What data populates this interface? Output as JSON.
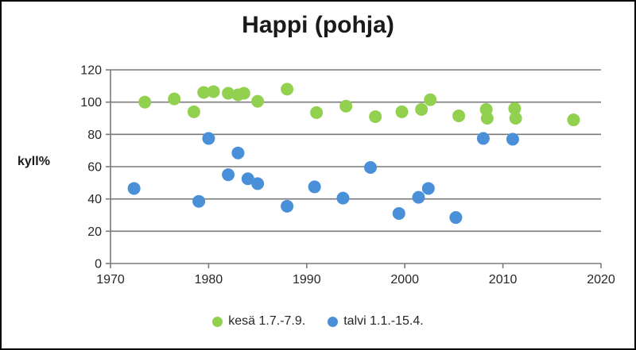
{
  "chart_data": {
    "type": "scatter",
    "title": "Happi (pohja)",
    "xlabel": "",
    "ylabel": "kyll%",
    "xlim": [
      1970,
      2020
    ],
    "ylim": [
      0,
      120
    ],
    "x_ticks": [
      1970,
      1980,
      1990,
      2000,
      2010,
      2020
    ],
    "y_ticks": [
      0,
      20,
      40,
      60,
      80,
      100,
      120
    ],
    "grid": "horizontal",
    "legend_position": "bottom",
    "axis_color": "#7a7a7a",
    "text_color": "#262626",
    "marker_radius": 8,
    "series": [
      {
        "name": "kesä 1.7.-7.9.",
        "color": "#92d050",
        "points": [
          [
            1973.5,
            100
          ],
          [
            1976.5,
            102
          ],
          [
            1978.5,
            94
          ],
          [
            1979.5,
            106
          ],
          [
            1980.5,
            106.5
          ],
          [
            1982,
            105.5
          ],
          [
            1983,
            104.5
          ],
          [
            1983.6,
            105.5
          ],
          [
            1985,
            100.5
          ],
          [
            1988,
            108
          ],
          [
            1991,
            93.5
          ],
          [
            1994,
            97.5
          ],
          [
            1997,
            91
          ],
          [
            1999.7,
            94
          ],
          [
            2001.7,
            95.5
          ],
          [
            2002.6,
            101.5
          ],
          [
            2005.5,
            91.5
          ],
          [
            2008.3,
            95.5
          ],
          [
            2008.4,
            90
          ],
          [
            2011.2,
            96
          ],
          [
            2011.3,
            90
          ],
          [
            2017.2,
            89
          ]
        ]
      },
      {
        "name": "talvi 1.1.-15.4.",
        "color": "#4a90d9",
        "points": [
          [
            1972.4,
            46.5
          ],
          [
            1979,
            38.5
          ],
          [
            1980,
            77.5
          ],
          [
            1982,
            55
          ],
          [
            1983,
            68.5
          ],
          [
            1984,
            52.5
          ],
          [
            1985,
            49.5
          ],
          [
            1988,
            35.5
          ],
          [
            1990.8,
            47.5
          ],
          [
            1993.7,
            40.5
          ],
          [
            1996.5,
            59.5
          ],
          [
            1999.4,
            31
          ],
          [
            2001.4,
            41
          ],
          [
            2002.4,
            46.5
          ],
          [
            2005.2,
            28.5
          ],
          [
            2008,
            77.5
          ],
          [
            2011,
            77
          ]
        ]
      }
    ]
  }
}
